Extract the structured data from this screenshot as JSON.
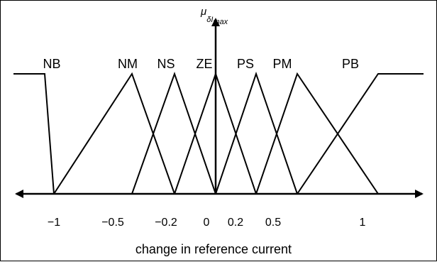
{
  "diagram": {
    "y_axis_label": {
      "mu": "μ",
      "sub": "δI",
      "subsub": "max"
    },
    "x_axis_title": "change in reference current",
    "membership_sets": [
      {
        "name": "NB",
        "shape": "left-shoulder",
        "points": [
          [
            -1.4,
            1
          ],
          [
            -1.2,
            1
          ],
          [
            -1,
            0
          ]
        ]
      },
      {
        "name": "NM",
        "shape": "triangle",
        "points": [
          [
            -1.1,
            0
          ],
          [
            -0.6,
            1
          ],
          [
            -0.3,
            0
          ]
        ]
      },
      {
        "name": "NS",
        "shape": "triangle",
        "points": [
          [
            -0.65,
            0
          ],
          [
            -0.35,
            1
          ],
          [
            -0.05,
            0
          ]
        ]
      },
      {
        "name": "ZE",
        "shape": "triangle",
        "points": [
          [
            -0.3,
            0
          ],
          [
            0,
            1
          ],
          [
            0.3,
            0
          ]
        ]
      },
      {
        "name": "PS",
        "shape": "triangle",
        "points": [
          [
            0.05,
            0
          ],
          [
            0.3,
            1
          ],
          [
            0.6,
            0
          ]
        ]
      },
      {
        "name": "PM",
        "shape": "triangle",
        "points": [
          [
            0.3,
            0
          ],
          [
            0.6,
            1
          ],
          [
            1.1,
            0
          ]
        ]
      },
      {
        "name": "PB",
        "shape": "right-shoulder",
        "points": [
          [
            0.6,
            0
          ],
          [
            1.1,
            1
          ],
          [
            1.4,
            1
          ]
        ]
      }
    ],
    "tick_labels": [
      "−1",
      "−0.5",
      "−0.2",
      "0",
      "0.2",
      "0.5",
      "1"
    ]
  }
}
